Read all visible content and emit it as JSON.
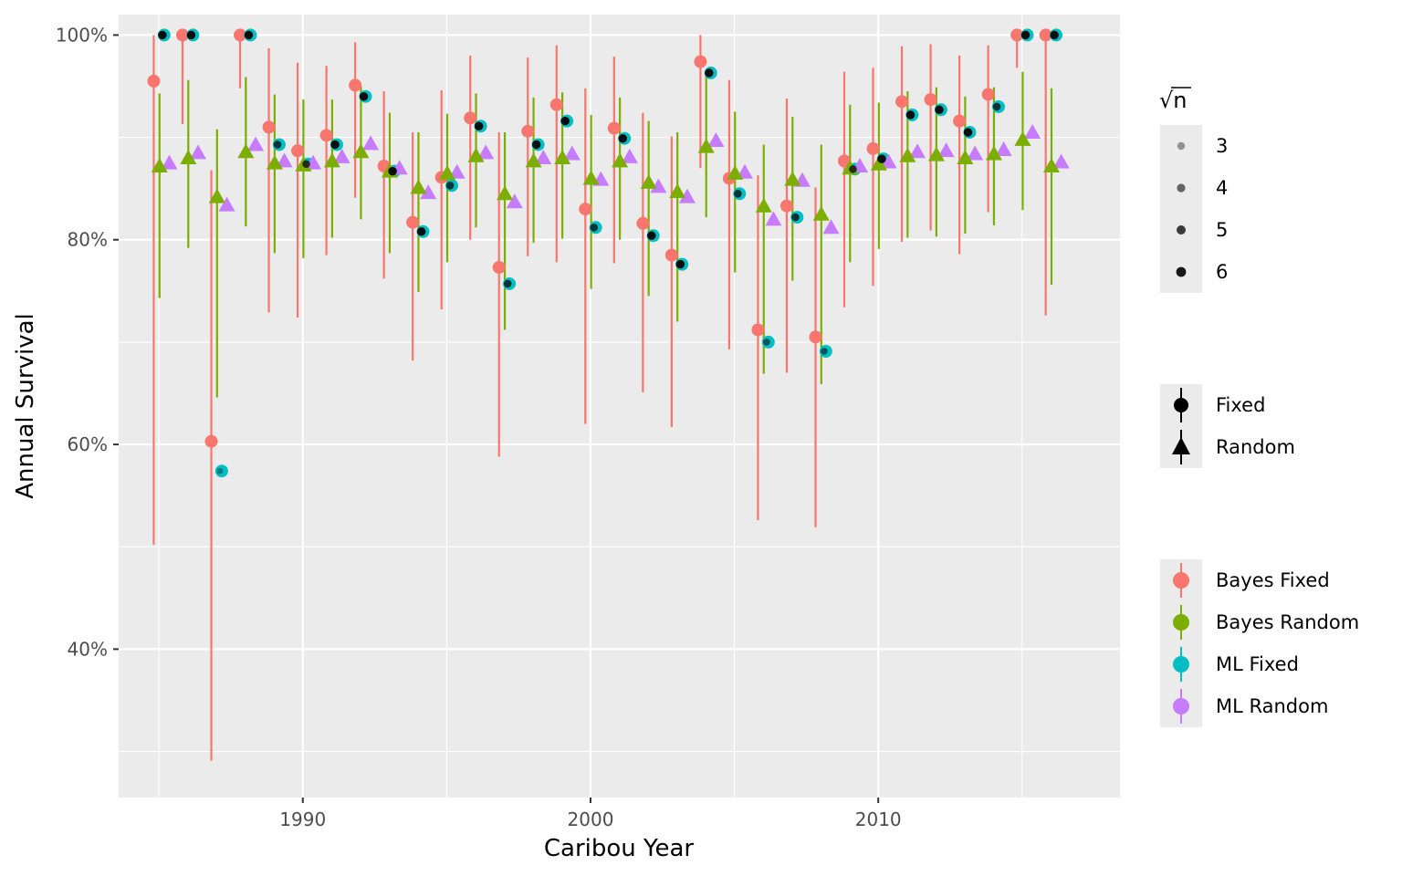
{
  "chart_data": {
    "type": "scatter",
    "title": "",
    "xlabel": "Caribou Year",
    "ylabel": "Annual Survival",
    "xlim": [
      1983.6,
      2018.4
    ],
    "ylim": [
      0.255,
      1.02
    ],
    "x_ticks": [
      1990,
      2000,
      2010
    ],
    "x_tick_labels": [
      "1990",
      "2000",
      "2010"
    ],
    "y_ticks": [
      0.4,
      0.6,
      0.8,
      1.0
    ],
    "y_tick_labels": [
      "40%",
      "60%",
      "80%",
      "100%"
    ],
    "grid": true,
    "legend_position": "right",
    "legends": {
      "sqrt_n": {
        "title": "√n",
        "labels": [
          "3",
          "4",
          "5",
          "6"
        ],
        "values": [
          3,
          4,
          5,
          6
        ]
      },
      "effect": {
        "labels": [
          "Fixed",
          "Random"
        ]
      },
      "method": {
        "labels": [
          "Bayes Fixed",
          "Bayes Random",
          "ML Fixed",
          "ML Random"
        ]
      }
    },
    "colors": {
      "Bayes Fixed": "#F8766D",
      "Bayes Random": "#7CAE00",
      "ML Fixed": "#00BFC4",
      "ML Random": "#C77CFF",
      "panel": "#EBEBEB",
      "grid": "#FFFFFF"
    },
    "years": [
      1985,
      1986,
      1987,
      1988,
      1989,
      1990,
      1991,
      1992,
      1993,
      1994,
      1995,
      1996,
      1997,
      1998,
      1999,
      2000,
      2001,
      2002,
      2003,
      2004,
      2005,
      2006,
      2007,
      2008,
      2009,
      2010,
      2011,
      2012,
      2013,
      2014,
      2015,
      2016
    ],
    "series": [
      {
        "name": "Bayes Fixed",
        "estimate": [
          0.955,
          1.0,
          0.603,
          1.0,
          0.91,
          0.887,
          0.902,
          0.951,
          0.872,
          0.817,
          0.861,
          0.919,
          0.773,
          0.906,
          0.932,
          0.83,
          0.909,
          0.816,
          0.785,
          0.974,
          0.86,
          0.712,
          0.833,
          0.705,
          0.877,
          0.889,
          0.935,
          0.937,
          0.916,
          0.942,
          1.0,
          1.0
        ],
        "lower": [
          0.502,
          0.913,
          0.291,
          0.948,
          0.729,
          0.724,
          0.785,
          0.841,
          0.762,
          0.682,
          0.732,
          0.8,
          0.588,
          0.784,
          0.778,
          0.62,
          0.777,
          0.651,
          0.617,
          0.87,
          0.693,
          0.526,
          0.67,
          0.519,
          0.734,
          0.755,
          0.798,
          0.809,
          0.786,
          0.827,
          0.968,
          0.726
        ],
        "upper": [
          1.0,
          1.0,
          0.868,
          1.0,
          0.987,
          0.973,
          0.97,
          0.993,
          0.945,
          0.905,
          0.946,
          0.98,
          0.905,
          0.978,
          0.99,
          0.948,
          0.979,
          0.924,
          0.901,
          1.0,
          0.956,
          0.863,
          0.938,
          0.851,
          0.964,
          0.968,
          0.989,
          0.991,
          0.98,
          0.99,
          1.0,
          1.0
        ]
      },
      {
        "name": "Bayes Random",
        "estimate": [
          0.872,
          0.88,
          0.842,
          0.886,
          0.875,
          0.873,
          0.877,
          0.886,
          0.867,
          0.851,
          0.865,
          0.882,
          0.845,
          0.877,
          0.88,
          0.86,
          0.877,
          0.856,
          0.847,
          0.891,
          0.865,
          0.833,
          0.859,
          0.825,
          0.87,
          0.874,
          0.882,
          0.883,
          0.88,
          0.884,
          0.898,
          0.872
        ],
        "lower": [
          0.743,
          0.792,
          0.646,
          0.813,
          0.787,
          0.782,
          0.802,
          0.82,
          0.787,
          0.749,
          0.778,
          0.812,
          0.712,
          0.797,
          0.801,
          0.752,
          0.8,
          0.745,
          0.72,
          0.822,
          0.768,
          0.669,
          0.76,
          0.659,
          0.778,
          0.791,
          0.802,
          0.803,
          0.806,
          0.814,
          0.829,
          0.756
        ],
        "upper": [
          0.943,
          0.956,
          0.908,
          0.959,
          0.942,
          0.937,
          0.937,
          0.95,
          0.924,
          0.905,
          0.923,
          0.943,
          0.905,
          0.939,
          0.944,
          0.922,
          0.939,
          0.916,
          0.905,
          0.963,
          0.925,
          0.893,
          0.92,
          0.893,
          0.932,
          0.934,
          0.945,
          0.949,
          0.94,
          0.949,
          0.964,
          0.948
        ]
      },
      {
        "name": "ML Fixed",
        "estimate": [
          1.0,
          1.0,
          0.574,
          1.0,
          0.893,
          0.874,
          0.893,
          0.94,
          0.867,
          0.808,
          0.853,
          0.911,
          0.757,
          0.893,
          0.916,
          0.812,
          0.899,
          0.804,
          0.776,
          0.963,
          0.845,
          0.7,
          0.822,
          0.691,
          0.869,
          0.879,
          0.922,
          0.927,
          0.905,
          0.93,
          1.0,
          1.0
        ]
      },
      {
        "name": "ML Random",
        "estimate": [
          0.875,
          0.885,
          0.834,
          0.893,
          0.877,
          0.875,
          0.881,
          0.894,
          0.87,
          0.846,
          0.866,
          0.885,
          0.837,
          0.88,
          0.884,
          0.859,
          0.881,
          0.852,
          0.842,
          0.897,
          0.866,
          0.82,
          0.858,
          0.812,
          0.872,
          0.876,
          0.886,
          0.887,
          0.884,
          0.888,
          0.905,
          0.876
        ]
      }
    ],
    "sample_size_sqrt": [
      6,
      6,
      3,
      6,
      5,
      5,
      6,
      6,
      6,
      6,
      5,
      6,
      5,
      6,
      6,
      5,
      6,
      6,
      6,
      6,
      5,
      4,
      5,
      4,
      5,
      6,
      6,
      6,
      6,
      5,
      6,
      6
    ]
  }
}
